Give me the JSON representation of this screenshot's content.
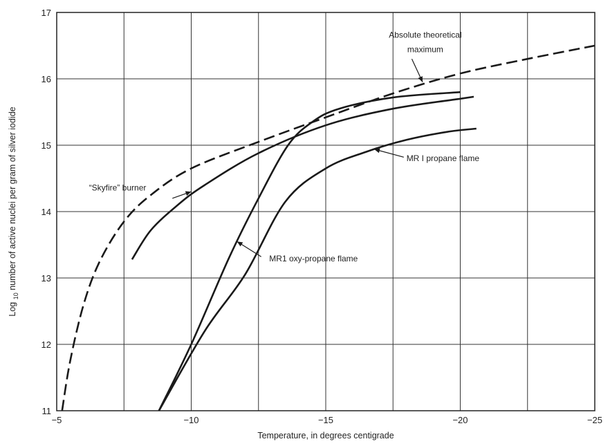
{
  "chart_data": {
    "type": "line",
    "xlabel": "Temperature, in degrees centigrade",
    "ylabel_prefix": "Log",
    "ylabel_sub": "10",
    "ylabel_rest": " number of active nuclei per gram of silver iodide",
    "xlim": [
      -5,
      -25
    ],
    "ylim": [
      11,
      17
    ],
    "x_ticks": [
      -5,
      -10,
      -15,
      -20,
      -25
    ],
    "x_tick_labels": [
      "−5",
      "−10",
      "−15",
      "−20",
      "−25"
    ],
    "y_ticks": [
      11,
      12,
      13,
      14,
      15,
      16,
      17
    ],
    "y_tick_labels": [
      "11",
      "12",
      "13",
      "14",
      "15",
      "16",
      "17"
    ],
    "grid_x": [
      -5,
      -7.5,
      -10,
      -12.5,
      -15,
      -17.5,
      -20,
      -22.5,
      -25
    ],
    "grid_y": [
      11,
      12,
      13,
      14,
      15,
      16,
      17
    ],
    "grid": true,
    "series": [
      {
        "name": "Absolute theoretical maximum",
        "dash": true,
        "points": [
          [
            -5.2,
            11.0
          ],
          [
            -5.5,
            11.75
          ],
          [
            -6.0,
            12.6
          ],
          [
            -6.6,
            13.25
          ],
          [
            -7.5,
            13.85
          ],
          [
            -8.5,
            14.25
          ],
          [
            -10.0,
            14.65
          ],
          [
            -12.5,
            15.05
          ],
          [
            -15.0,
            15.42
          ],
          [
            -17.5,
            15.78
          ],
          [
            -20.0,
            16.08
          ],
          [
            -22.5,
            16.3
          ],
          [
            -25.0,
            16.5
          ]
        ]
      },
      {
        "name": "“Skyfire” burner",
        "dash": false,
        "points": [
          [
            -7.8,
            13.28
          ],
          [
            -8.5,
            13.72
          ],
          [
            -9.5,
            14.1
          ],
          [
            -10.5,
            14.4
          ],
          [
            -12.5,
            14.88
          ],
          [
            -15.0,
            15.3
          ],
          [
            -17.5,
            15.55
          ],
          [
            -20.0,
            15.7
          ],
          [
            -20.5,
            15.73
          ]
        ]
      },
      {
        "name": "MR1 oxy-propane flame",
        "dash": false,
        "points": [
          [
            -8.8,
            11.0
          ],
          [
            -10.0,
            12.0
          ],
          [
            -11.4,
            13.3
          ],
          [
            -12.5,
            14.2
          ],
          [
            -13.6,
            15.0
          ],
          [
            -14.5,
            15.35
          ],
          [
            -15.5,
            15.55
          ],
          [
            -17.5,
            15.72
          ],
          [
            -20.0,
            15.8
          ]
        ]
      },
      {
        "name": "MR1 propane flame",
        "dash": false,
        "points": [
          [
            -8.8,
            11.0
          ],
          [
            -10.5,
            12.2
          ],
          [
            -12.0,
            13.05
          ],
          [
            -13.5,
            14.15
          ],
          [
            -15.0,
            14.65
          ],
          [
            -16.5,
            14.9
          ],
          [
            -18.0,
            15.08
          ],
          [
            -19.5,
            15.2
          ],
          [
            -20.6,
            15.25
          ]
        ]
      }
    ],
    "annotations": [
      {
        "id": "ann-max-1",
        "text": "Absolute theoretical",
        "x": -18.7,
        "y": 16.62,
        "anchor": "middle"
      },
      {
        "id": "ann-max-2",
        "text": "maximum",
        "x": -18.7,
        "y": 16.4,
        "anchor": "middle"
      },
      {
        "id": "ann-skyfire",
        "text": "“Skyfire” burner",
        "x": -6.2,
        "y": 14.32,
        "anchor": "start"
      },
      {
        "id": "ann-oxy",
        "text": "MR1 oxy-propane flame",
        "x": -12.9,
        "y": 13.25,
        "anchor": "start"
      },
      {
        "id": "ann-propane",
        "text": "MR I propane flame",
        "x": -18.0,
        "y": 14.76,
        "anchor": "start"
      }
    ],
    "arrows": [
      {
        "id": "arrow-max",
        "from": [
          -18.2,
          16.3
        ],
        "to": [
          -18.6,
          15.95
        ]
      },
      {
        "id": "arrow-skyfire",
        "from": [
          -9.3,
          14.2
        ],
        "to": [
          -10.0,
          14.3
        ]
      },
      {
        "id": "arrow-oxy",
        "from": [
          -12.6,
          13.32
        ],
        "to": [
          -11.7,
          13.55
        ]
      },
      {
        "id": "arrow-propane",
        "from": [
          -17.9,
          14.82
        ],
        "to": [
          -16.8,
          14.94
        ]
      }
    ]
  }
}
